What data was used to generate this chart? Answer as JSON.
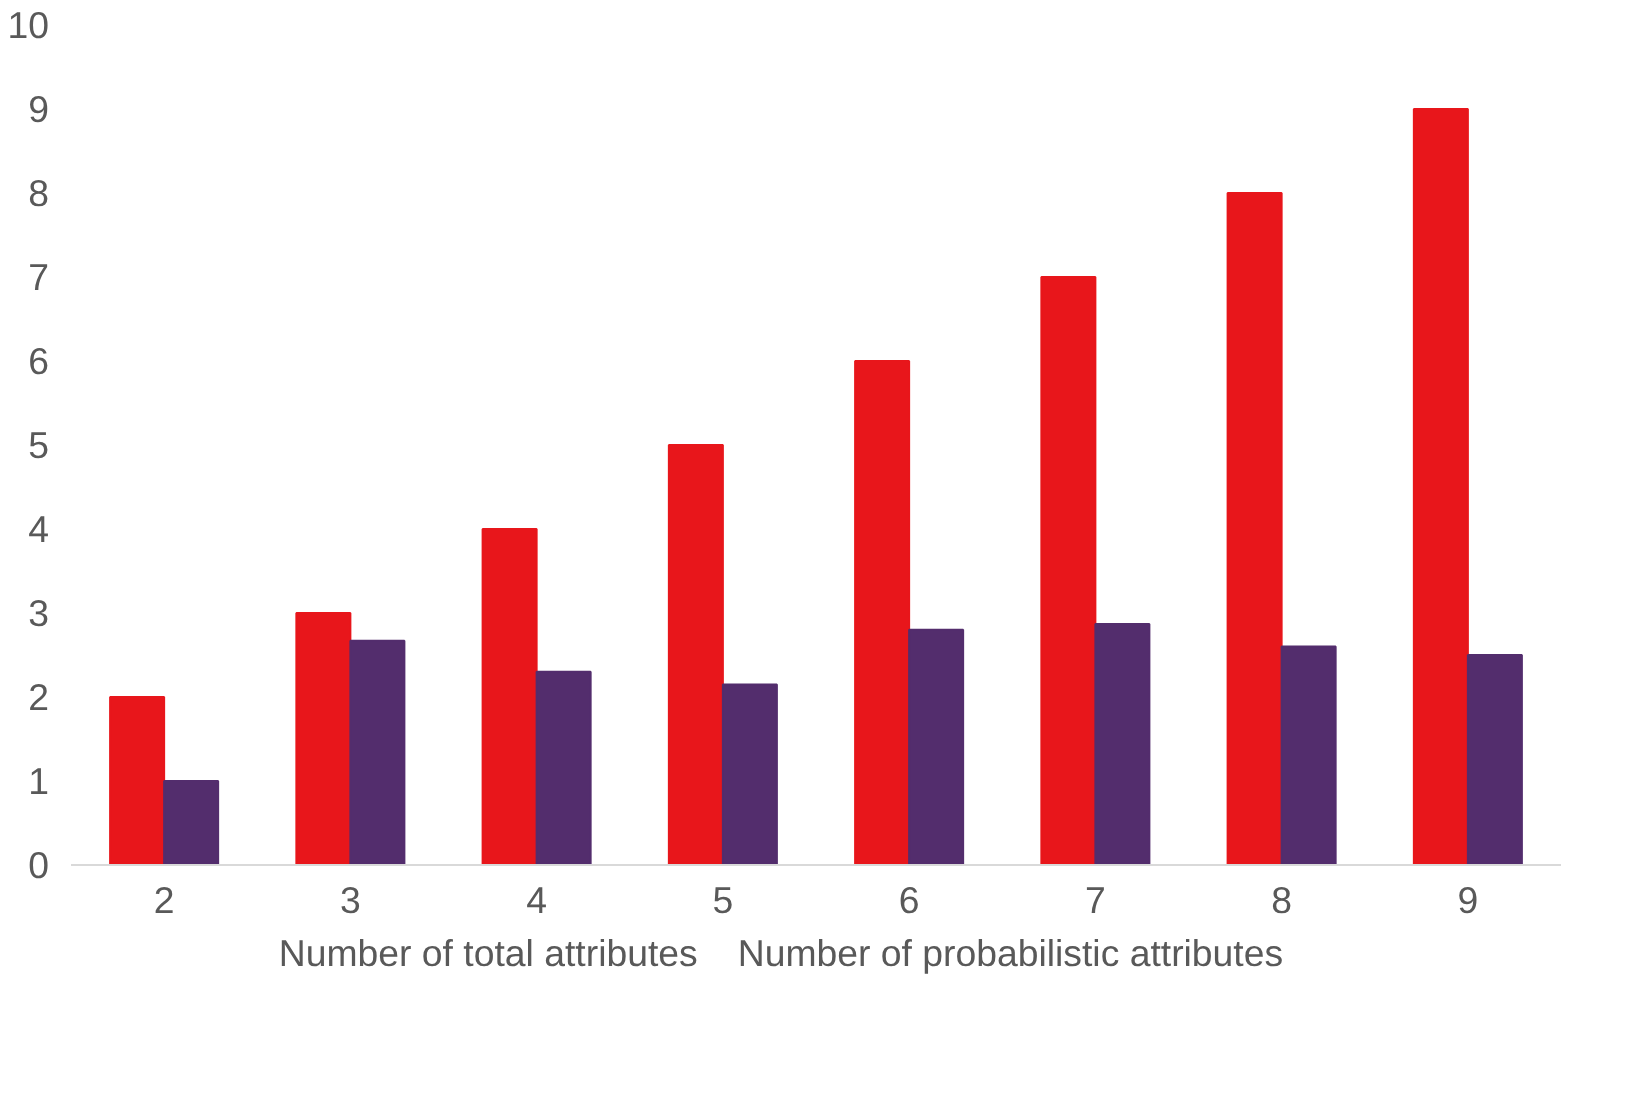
{
  "chart_data": {
    "type": "bar",
    "categories": [
      "2",
      "3",
      "4",
      "5",
      "6",
      "7",
      "8",
      "9"
    ],
    "series": [
      {
        "name": "Number of total attributes",
        "color": "#e8161b",
        "values": [
          2,
          3,
          4,
          5,
          6,
          7,
          8,
          9
        ]
      },
      {
        "name": "Number of probabilistic attributes",
        "color": "#532d6d",
        "values": [
          1,
          2.67,
          2.3,
          2.15,
          2.8,
          2.87,
          2.6,
          2.5
        ]
      }
    ],
    "ylim": [
      0,
      10
    ],
    "yticks": [
      0,
      1,
      2,
      3,
      4,
      5,
      6,
      7,
      8,
      9,
      10
    ],
    "grid": false,
    "legend": "bottom"
  }
}
